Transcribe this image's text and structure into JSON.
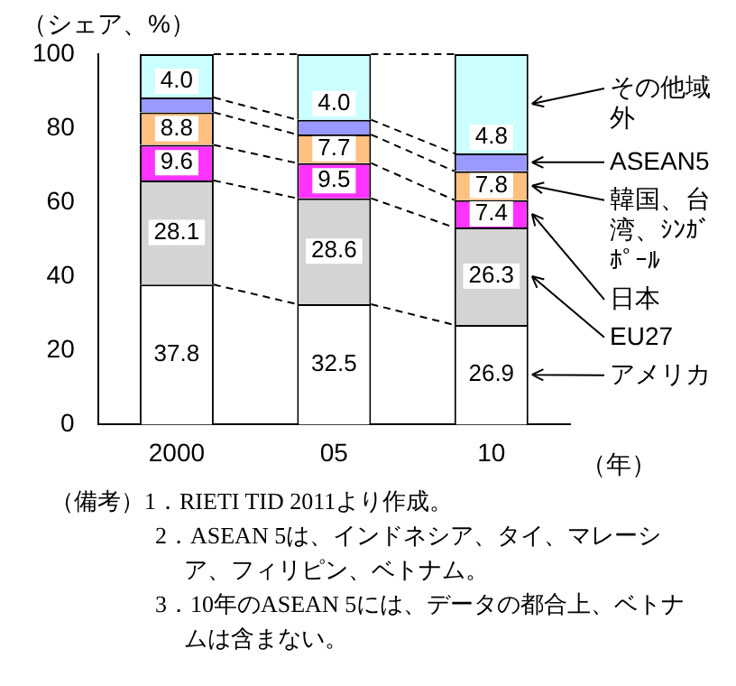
{
  "chart_data": {
    "type": "bar",
    "stacked": true,
    "ylabel": "（シェア、%）",
    "xlabel": "（年）",
    "categories": [
      "2000",
      "05",
      "10"
    ],
    "ylim": [
      0,
      100
    ],
    "yticks": [
      0,
      20,
      40,
      60,
      80,
      100
    ],
    "series": [
      {
        "name": "アメリカ",
        "color": "#ffffff",
        "values": [
          37.8,
          32.5,
          26.9
        ],
        "value_labels": [
          "37.8",
          "32.5",
          "26.9"
        ]
      },
      {
        "name": "EU27",
        "color": "#d4d4d4",
        "values": [
          28.1,
          28.6,
          26.3
        ],
        "value_labels": [
          "28.1",
          "28.6",
          "26.3"
        ]
      },
      {
        "name": "日本",
        "color": "#ff33ff",
        "values": [
          9.6,
          9.5,
          7.4
        ],
        "value_labels": [
          "9.6",
          "9.5",
          "7.4"
        ]
      },
      {
        "name": "韓国、台湾、ｼﾝｶﾞﾎﾟｰﾙ",
        "color": "#ffc080",
        "values": [
          8.8,
          7.7,
          7.8
        ],
        "value_labels": [
          "8.8",
          "7.7",
          "7.8"
        ]
      },
      {
        "name": "ASEAN5",
        "color": "#9999ff",
        "values": [
          4.0,
          4.0,
          4.8
        ],
        "value_labels": [
          "4.0",
          "4.0",
          "4.8"
        ]
      },
      {
        "name": "その他域外",
        "color": "#ccffff",
        "values": [
          11.7,
          17.7,
          26.8
        ]
      }
    ],
    "annotations": [
      "（備考）1．RIETI TID 2011より作成。",
      "2．ASEAN 5は、インドネシア、タイ、マレーシア、フィリピン、ベトナム。",
      "3．10年のASEAN 5には、データの都合上、ベトナムは含まない。"
    ]
  }
}
